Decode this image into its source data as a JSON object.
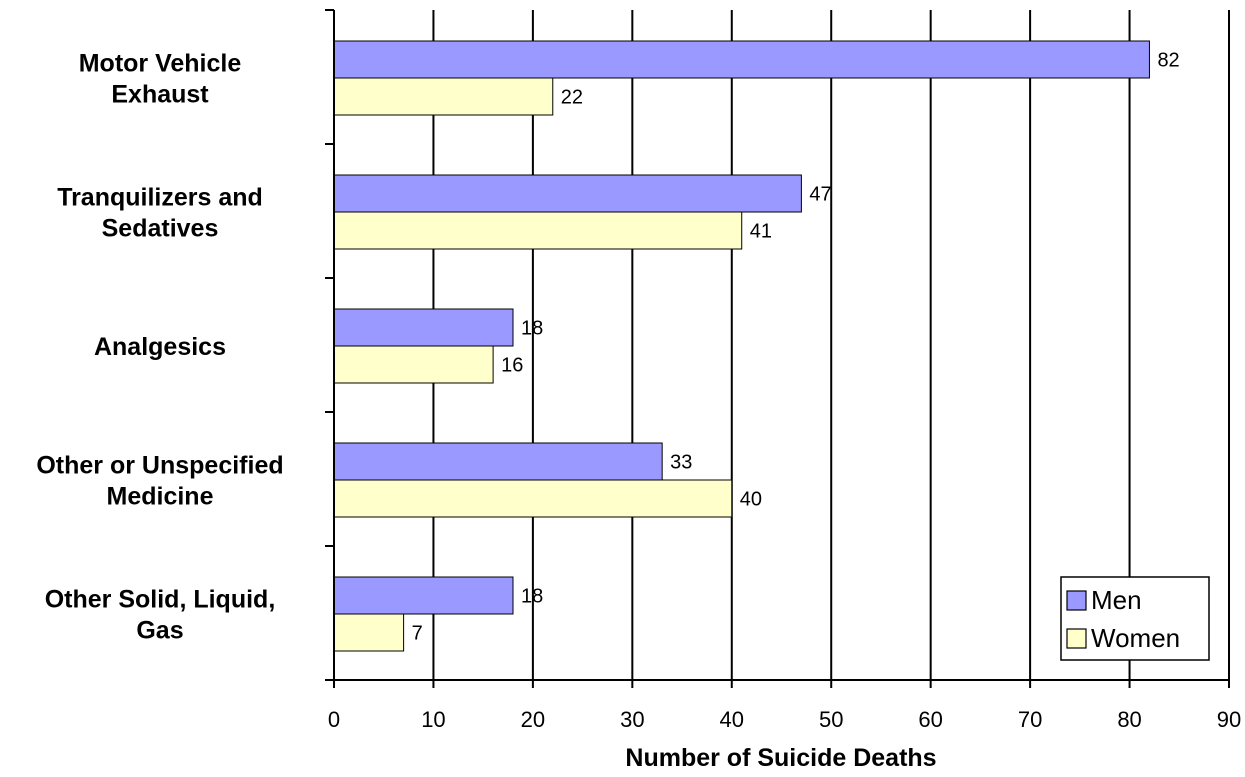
{
  "chart_data": {
    "type": "bar",
    "orientation": "horizontal",
    "categories": [
      [
        "Motor Vehicle",
        "Exhaust"
      ],
      [
        "Tranquilizers and",
        "Sedatives"
      ],
      [
        "Analgesics"
      ],
      [
        "Other or Unspecified",
        "Medicine"
      ],
      [
        "Other Solid, Liquid,",
        "Gas"
      ]
    ],
    "series": [
      {
        "name": "Men",
        "values": [
          82,
          47,
          18,
          33,
          18
        ],
        "color": "#9999ff"
      },
      {
        "name": "Women",
        "values": [
          22,
          41,
          16,
          40,
          7
        ],
        "color": "#ffffcc"
      }
    ],
    "xlabel": "Number of Suicide Deaths",
    "xlim": [
      0,
      90
    ],
    "xticks": [
      0,
      10,
      20,
      30,
      40,
      50,
      60,
      70,
      80,
      90
    ],
    "grid": "vertical",
    "legend_position": "bottom-right"
  }
}
